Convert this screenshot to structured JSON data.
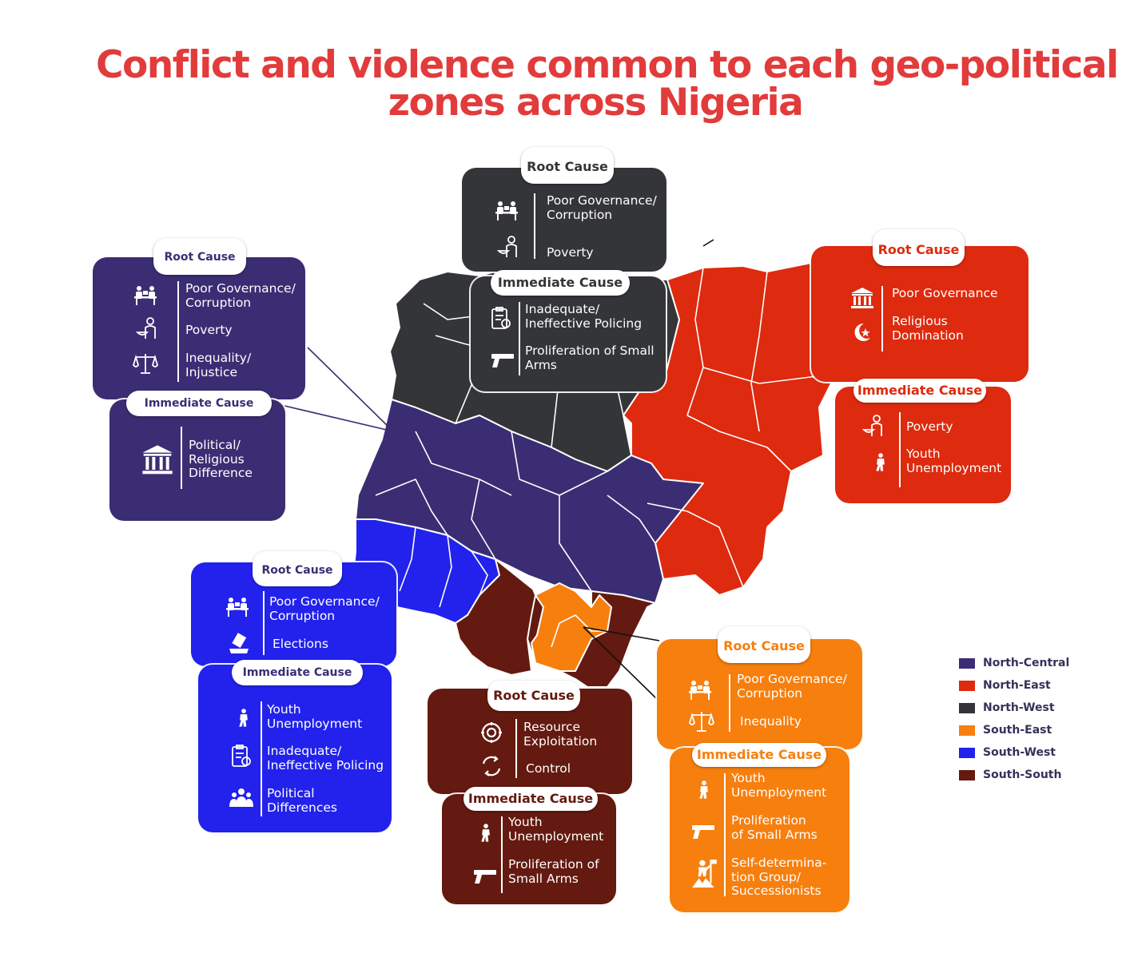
{
  "title": {
    "line1": "Conflict and violence common to each geo-political",
    "line2": "zones across Nigeria"
  },
  "colors": {
    "north_central": "#3b2d73",
    "north_east": "#de2a0e",
    "north_west": "#343538",
    "south_east": "#f77f0e",
    "south_west": "#2222ec",
    "south_south": "#641a10"
  },
  "legend": [
    {
      "label": "North-Central",
      "color": "#3b2d73"
    },
    {
      "label": "North-East",
      "color": "#de2a0e"
    },
    {
      "label": "North-West",
      "color": "#343538"
    },
    {
      "label": "South-East",
      "color": "#f77f0e"
    },
    {
      "label": "South-West",
      "color": "#2222ec"
    },
    {
      "label": "South-South",
      "color": "#641a10"
    }
  ],
  "zones": {
    "north_west": {
      "root_label": "Root Cause",
      "root_items": [
        {
          "icon": "meeting-icon",
          "text": "Poor Governance/\nCorruption"
        },
        {
          "icon": "poverty-icon",
          "text": "Poverty"
        }
      ],
      "immediate_label": "Immediate Cause",
      "immediate_items": [
        {
          "icon": "clipboard-badge-icon",
          "text": "Inadequate/\nIneffective Policing"
        },
        {
          "icon": "gun-icon",
          "text": "Proliferation of Small\nArms"
        }
      ]
    },
    "north_central": {
      "root_label": "Root Cause",
      "root_items": [
        {
          "icon": "meeting-icon",
          "text": "Poor Governance/\nCorruption"
        },
        {
          "icon": "poverty-icon",
          "text": "Poverty"
        },
        {
          "icon": "scales-icon",
          "text": "Inequality/\nInjustice"
        }
      ],
      "immediate_label": "Immediate Cause",
      "immediate_items": [
        {
          "icon": "government-building-icon",
          "text": "Political/\nReligious\nDifference"
        }
      ]
    },
    "north_east": {
      "root_label": "Root Cause",
      "root_items": [
        {
          "icon": "government-building-icon",
          "text": "Poor Governance"
        },
        {
          "icon": "crescent-star-icon",
          "text": "Religious\nDomination"
        }
      ],
      "immediate_label": "Immediate Cause",
      "immediate_items": [
        {
          "icon": "poverty-icon",
          "text": "Poverty"
        },
        {
          "icon": "unemployed-youth-icon",
          "text": "Youth\nUnemployment"
        }
      ]
    },
    "south_west": {
      "root_label": "Root Cause",
      "root_items": [
        {
          "icon": "meeting-icon",
          "text": "Poor Governance/\nCorruption"
        },
        {
          "icon": "ballot-icon",
          "text": "Elections"
        }
      ],
      "immediate_label": "Immediate Cause",
      "immediate_items": [
        {
          "icon": "unemployed-youth-icon",
          "text": "Youth\nUnemployment"
        },
        {
          "icon": "clipboard-badge-icon",
          "text": "Inadequate/\nIneffective Policing"
        },
        {
          "icon": "group-icon",
          "text": "Political\nDifferences"
        }
      ]
    },
    "south_south": {
      "root_label": "Root Cause",
      "root_items": [
        {
          "icon": "gear-icon",
          "text": "Resource\nExploitation"
        },
        {
          "icon": "cycle-icon",
          "text": "Control"
        }
      ],
      "immediate_label": "Immediate Cause",
      "immediate_items": [
        {
          "icon": "unemployed-youth-icon",
          "text": "Youth\nUnemployment"
        },
        {
          "icon": "gun-icon",
          "text": "Proliferation of\nSmall Arms"
        }
      ]
    },
    "south_east": {
      "root_label": "Root Cause",
      "root_items": [
        {
          "icon": "meeting-icon",
          "text": "Poor Governance/\nCorruption"
        },
        {
          "icon": "scales-icon",
          "text": "Inequality"
        }
      ],
      "immediate_label": "Immediate Cause",
      "immediate_items": [
        {
          "icon": "unemployed-youth-icon",
          "text": "Youth\nUnemployment"
        },
        {
          "icon": "gun-icon",
          "text": "Proliferation\nof Small Arms"
        },
        {
          "icon": "protester-icon",
          "text": "Self-determina-\ntion Group/\nSuccessionists"
        }
      ]
    }
  }
}
